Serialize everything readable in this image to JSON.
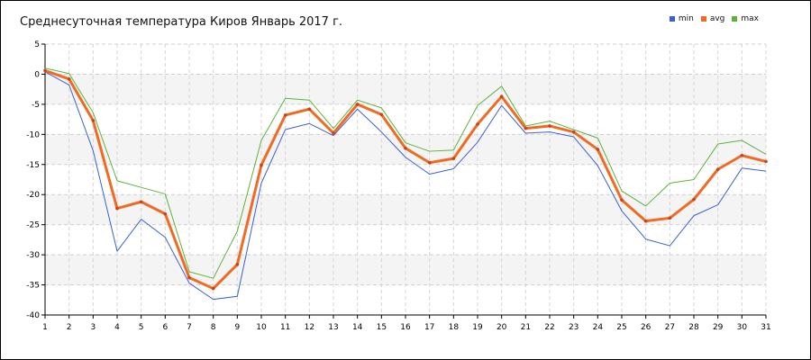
{
  "chart_data": {
    "type": "line",
    "title": "Среднесуточная температура Киров  Январь 2017 г.",
    "xlabel": "",
    "ylabel": "",
    "x": [
      1,
      2,
      3,
      4,
      5,
      6,
      7,
      8,
      9,
      10,
      11,
      12,
      13,
      14,
      15,
      16,
      17,
      18,
      19,
      20,
      21,
      22,
      23,
      24,
      25,
      26,
      27,
      28,
      29,
      30,
      31
    ],
    "ylim": [
      -40,
      5
    ],
    "yticks": [
      5,
      0,
      -5,
      -10,
      -15,
      -20,
      -25,
      -30,
      -35,
      -40
    ],
    "legend_position": "top-right",
    "grid": true,
    "series": [
      {
        "name": "min",
        "color": "#3a5fd9",
        "values": [
          0.4,
          -1.8,
          -12.7,
          -29.4,
          -24.1,
          -27.1,
          -34.7,
          -37.4,
          -36.9,
          -18.1,
          -9.2,
          -8.2,
          -10.2,
          -5.8,
          -9.6,
          -13.8,
          -16.6,
          -15.7,
          -11.3,
          -5.2,
          -9.8,
          -9.6,
          -10.4,
          -15.2,
          -22.7,
          -27.4,
          -28.5,
          -23.5,
          -21.7,
          -15.6,
          -16.1
        ]
      },
      {
        "name": "avg",
        "color": "#f06a24",
        "values": [
          0.6,
          -0.8,
          -7.7,
          -22.3,
          -21.2,
          -23.2,
          -33.8,
          -35.6,
          -31.6,
          -15.1,
          -6.8,
          -5.8,
          -9.8,
          -5.0,
          -6.7,
          -12.3,
          -14.7,
          -14.0,
          -8.3,
          -3.7,
          -9.0,
          -8.6,
          -9.6,
          -12.5,
          -20.9,
          -24.4,
          -23.9,
          -20.8,
          -15.8,
          -13.5,
          -14.5
        ]
      },
      {
        "name": "max",
        "color": "#5cb33a",
        "values": [
          1.0,
          0.1,
          -6.4,
          -17.7,
          -18.8,
          -19.9,
          -32.8,
          -33.9,
          -26.1,
          -11.0,
          -4.0,
          -4.3,
          -9.0,
          -4.3,
          -5.6,
          -11.4,
          -12.8,
          -12.6,
          -5.2,
          -2.0,
          -8.6,
          -7.8,
          -9.2,
          -10.6,
          -19.4,
          -21.9,
          -18.1,
          -17.5,
          -11.6,
          -11.0,
          -13.3
        ]
      }
    ]
  }
}
